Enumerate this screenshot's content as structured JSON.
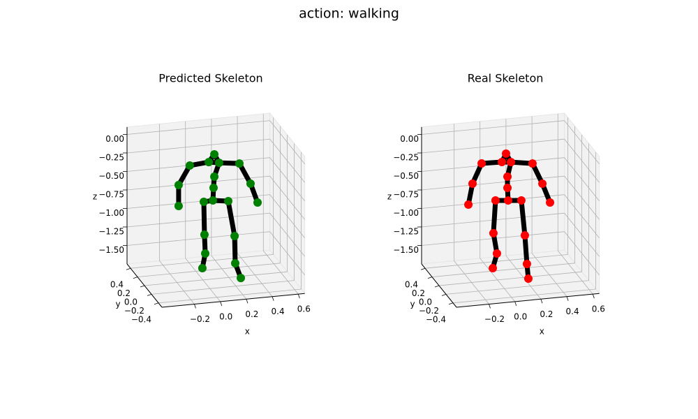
{
  "title": "action: walking",
  "chart_data": [
    {
      "type": "skeleton3d",
      "title": "Predicted Skeleton",
      "color": "#008000",
      "xlabel": "x",
      "ylabel": "y",
      "zlabel": "z",
      "x": [
        0.088,
        0.045,
        0.125,
        -0.101,
        0.281,
        -0.187,
        -0.187,
        0.367,
        0.421,
        0.088,
        0.082,
        0.077,
        0.007,
        0.195,
        0.012,
        0.018,
        -0.004,
        0.244,
        0.249,
        0.292
      ],
      "y": [
        0,
        0,
        0,
        0,
        0,
        0,
        0,
        0,
        0,
        0,
        0,
        0,
        0,
        0,
        0,
        0,
        0,
        0,
        0,
        0
      ],
      "z": [
        -0.068,
        -0.165,
        -0.188,
        -0.187,
        -0.224,
        -0.436,
        -0.719,
        -0.511,
        -0.775,
        -0.37,
        -0.52,
        -0.689,
        -0.695,
        -0.718,
        -1.14,
        -1.395,
        -1.59,
        -1.198,
        -1.567,
        -1.773
      ],
      "xlim": [
        -0.45,
        0.65
      ],
      "ylim": [
        -0.5,
        0.5
      ],
      "zlim": [
        -1.75,
        0.1
      ],
      "xticks": [
        {
          "value": -0.2,
          "label": "−0.2"
        },
        {
          "value": 0,
          "label": "0.0"
        },
        {
          "value": 0.2,
          "label": "0.2"
        },
        {
          "value": 0.4,
          "label": "0.4"
        },
        {
          "value": 0.6,
          "label": "0.6"
        }
      ],
      "yticks": [
        {
          "value": -0.4,
          "label": "−0.4"
        },
        {
          "value": -0.2,
          "label": "−0.2"
        },
        {
          "value": 0,
          "label": "0.0"
        },
        {
          "value": 0.2,
          "label": "0.2"
        },
        {
          "value": 0.4,
          "label": "0.4"
        }
      ],
      "zticks": [
        {
          "value": 0,
          "label": "0.00"
        },
        {
          "value": -0.25,
          "label": "−0.25"
        },
        {
          "value": -0.5,
          "label": "−0.50"
        },
        {
          "value": -0.75,
          "label": "−0.75"
        },
        {
          "value": -1,
          "label": "−1.00"
        },
        {
          "value": -1.25,
          "label": "−1.25"
        },
        {
          "value": -1.5,
          "label": "−1.50"
        }
      ],
      "grid": true
    },
    {
      "type": "skeleton3d",
      "title": "Real Skeleton",
      "color": "#ff0000",
      "xlabel": "x",
      "ylabel": "y",
      "zlabel": "z",
      "x": [
        0.066,
        0.034,
        0.104,
        -0.122,
        0.27,
        -0.192,
        -0.224,
        0.346,
        0.405,
        0.077,
        0.077,
        0.082,
        -0.015,
        0.184,
        -0.031,
        -0.004,
        -0.036,
        0.211,
        0.227,
        0.238
      ],
      "y": [
        0,
        0,
        0,
        0,
        0,
        0,
        0,
        0,
        0,
        0,
        0,
        0,
        0,
        0,
        0,
        0,
        0,
        0,
        0,
        0
      ],
      "z": [
        -0.055,
        -0.162,
        -0.175,
        -0.155,
        -0.222,
        -0.416,
        -0.694,
        -0.508,
        -0.773,
        -0.368,
        -0.519,
        -0.69,
        -0.673,
        -0.707,
        -1.113,
        -1.392,
        -1.585,
        -1.183,
        -1.573,
        -1.773
      ],
      "xlim": [
        -0.45,
        0.65
      ],
      "ylim": [
        -0.5,
        0.5
      ],
      "zlim": [
        -1.75,
        0.1
      ],
      "xticks": [
        {
          "value": -0.2,
          "label": "−0.2"
        },
        {
          "value": 0,
          "label": "0.0"
        },
        {
          "value": 0.2,
          "label": "0.2"
        },
        {
          "value": 0.4,
          "label": "0.4"
        },
        {
          "value": 0.6,
          "label": "0.6"
        }
      ],
      "yticks": [
        {
          "value": -0.4,
          "label": "−0.4"
        },
        {
          "value": -0.2,
          "label": "−0.2"
        },
        {
          "value": 0,
          "label": "0.0"
        },
        {
          "value": 0.2,
          "label": "0.2"
        },
        {
          "value": 0.4,
          "label": "0.4"
        }
      ],
      "zticks": [
        {
          "value": 0,
          "label": "0.00"
        },
        {
          "value": -0.25,
          "label": "−0.25"
        },
        {
          "value": -0.5,
          "label": "−0.50"
        },
        {
          "value": -0.75,
          "label": "−0.75"
        },
        {
          "value": -1,
          "label": "−1.00"
        },
        {
          "value": -1.25,
          "label": "−1.25"
        },
        {
          "value": -1.5,
          "label": "−1.50"
        }
      ],
      "grid": true
    }
  ]
}
